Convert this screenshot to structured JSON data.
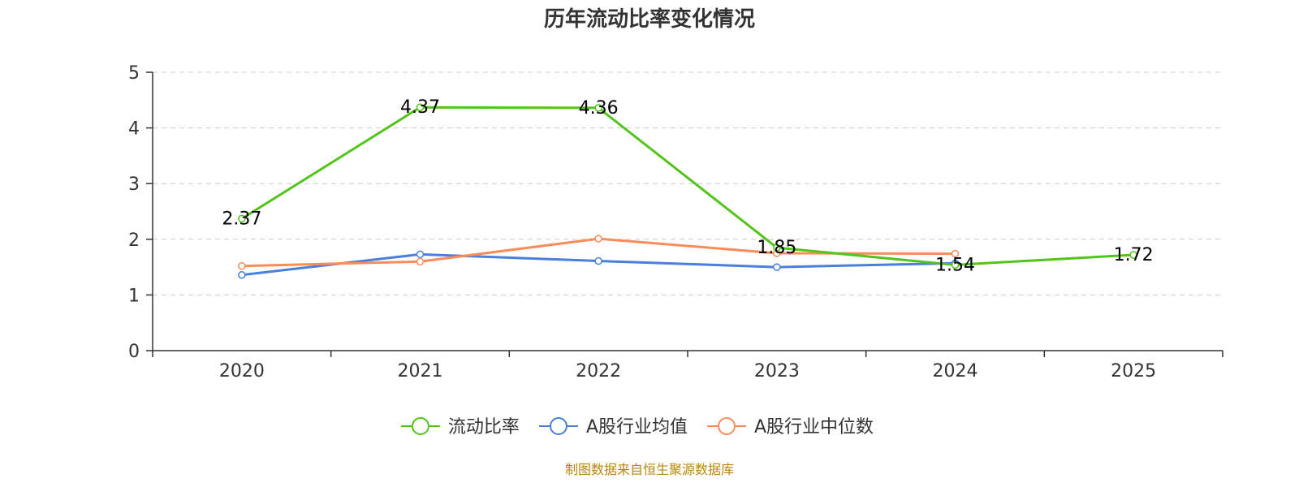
{
  "chart_data": {
    "type": "line",
    "title": "历年流动比率变化情况",
    "categories": [
      "2020",
      "2021",
      "2022",
      "2023",
      "2024",
      "2025"
    ],
    "ylim": [
      0,
      5
    ],
    "yticks": [
      0,
      1,
      2,
      3,
      4,
      5
    ],
    "grid": true,
    "legend_position": "bottom",
    "series": [
      {
        "name": "流动比率",
        "color": "#52c41a",
        "values": [
          2.37,
          4.37,
          4.36,
          1.85,
          1.54,
          1.72
        ],
        "labels": [
          "2.37",
          "4.37",
          "4.36",
          "1.85",
          "1.54",
          "1.72"
        ]
      },
      {
        "name": "A股行业均值",
        "color": "#4a7fdc",
        "values": [
          1.36,
          1.73,
          1.61,
          1.5,
          1.57,
          null
        ]
      },
      {
        "name": "A股行业中位数",
        "color": "#fa8c5a",
        "values": [
          1.52,
          1.6,
          2.01,
          1.75,
          1.74,
          null
        ]
      }
    ],
    "source": "制图数据来自恒生聚源数据库"
  }
}
